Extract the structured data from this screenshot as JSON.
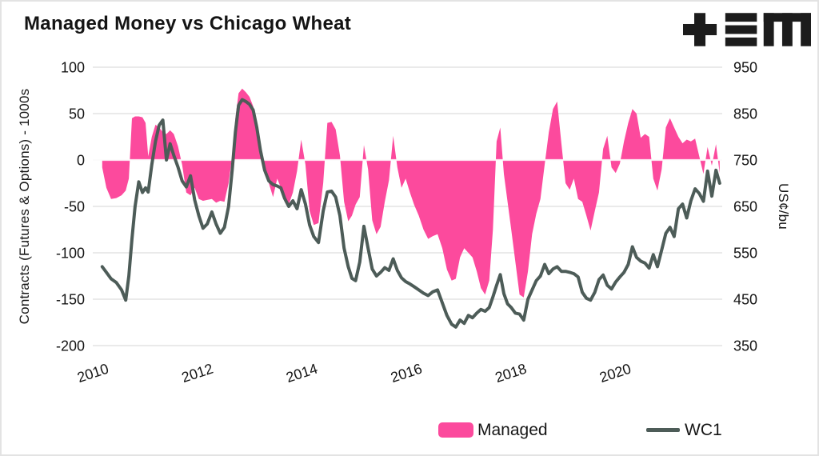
{
  "header": {
    "title": "Managed Money vs Chicago Wheat"
  },
  "logo": {
    "name": "tem-logo",
    "color": "#1c1c1c"
  },
  "colors": {
    "managed": "#fc4a9d",
    "wc1": "#4d5c58",
    "grid": "#e4e4e4",
    "zero_line": "#ffffff",
    "text": "#141414",
    "background": "#ffffff"
  },
  "legend": {
    "items": [
      {
        "label": "Managed",
        "swatch": "area",
        "color": "#fc4a9d"
      },
      {
        "label": "WC1",
        "swatch": "line",
        "color": "#4d5c58"
      }
    ]
  },
  "chart_data": {
    "type": "area+line",
    "title": "Managed Money vs Chicago Wheat",
    "grid": true,
    "legend_position": "bottom",
    "axes": {
      "x": {
        "ticks": [
          2010,
          2012,
          2014,
          2016,
          2018,
          2020
        ],
        "range": [
          2010.1,
          2022.0
        ],
        "tick_angle": -18
      },
      "left": {
        "title": "Contracts (Futures & Options) - 1000s",
        "ticks": [
          100,
          50,
          0,
          -50,
          -100,
          -150,
          -200
        ],
        "range": [
          -200,
          100
        ]
      },
      "right": {
        "title": "US¢/bu",
        "ticks": [
          950,
          850,
          750,
          650,
          550,
          450,
          350
        ],
        "range": [
          350,
          950
        ]
      }
    },
    "x": [
      2010.15,
      2010.23,
      2010.32,
      2010.42,
      2010.52,
      2010.6,
      2010.66,
      2010.72,
      2010.78,
      2010.85,
      2010.92,
      2010.98,
      2011.03,
      2011.1,
      2011.17,
      2011.24,
      2011.31,
      2011.38,
      2011.45,
      2011.52,
      2011.6,
      2011.68,
      2011.76,
      2011.84,
      2011.92,
      2012.0,
      2012.08,
      2012.16,
      2012.25,
      2012.33,
      2012.41,
      2012.49,
      2012.57,
      2012.64,
      2012.7,
      2012.76,
      2012.83,
      2012.9,
      2012.97,
      2013.04,
      2013.11,
      2013.18,
      2013.26,
      2013.34,
      2013.42,
      2013.5,
      2013.57,
      2013.64,
      2013.72,
      2013.8,
      2013.88,
      2013.96,
      2014.04,
      2014.12,
      2014.2,
      2014.29,
      2014.38,
      2014.46,
      2014.54,
      2014.62,
      2014.7,
      2014.78,
      2014.86,
      2014.93,
      2015.0,
      2015.08,
      2015.16,
      2015.24,
      2015.32,
      2015.4,
      2015.48,
      2015.56,
      2015.64,
      2015.72,
      2015.8,
      2015.88,
      2015.96,
      2016.04,
      2016.12,
      2016.21,
      2016.3,
      2016.39,
      2016.48,
      2016.57,
      2016.66,
      2016.75,
      2016.84,
      2016.92,
      2017.0,
      2017.08,
      2017.16,
      2017.24,
      2017.32,
      2017.4,
      2017.48,
      2017.56,
      2017.63,
      2017.7,
      2017.77,
      2017.84,
      2017.91,
      2017.98,
      2018.06,
      2018.14,
      2018.22,
      2018.3,
      2018.38,
      2018.46,
      2018.54,
      2018.62,
      2018.7,
      2018.78,
      2018.86,
      2018.94,
      2019.02,
      2019.1,
      2019.18,
      2019.26,
      2019.34,
      2019.42,
      2019.5,
      2019.58,
      2019.66,
      2019.74,
      2019.82,
      2019.9,
      2019.98,
      2020.06,
      2020.14,
      2020.22,
      2020.3,
      2020.38,
      2020.46,
      2020.54,
      2020.62,
      2020.7,
      2020.78,
      2020.86,
      2020.94,
      2021.02,
      2021.1,
      2021.18,
      2021.26,
      2021.34,
      2021.42,
      2021.5,
      2021.58,
      2021.66,
      2021.74,
      2021.82,
      2021.9,
      2021.97
    ],
    "series": [
      {
        "name": "Managed",
        "type": "area",
        "axis": "left",
        "color": "#fc4a9d",
        "values": [
          -8,
          -30,
          -42,
          -41,
          -38,
          -33,
          -20,
          45,
          47,
          47,
          46,
          40,
          4,
          25,
          38,
          35,
          30,
          28,
          32,
          28,
          15,
          -5,
          -35,
          -38,
          -30,
          -42,
          -44,
          -43,
          -42,
          -46,
          -44,
          -45,
          -25,
          5,
          45,
          72,
          77,
          73,
          68,
          58,
          40,
          18,
          -5,
          -25,
          -40,
          -20,
          -30,
          -40,
          -48,
          -35,
          -12,
          22,
          -5,
          -55,
          -70,
          -68,
          -25,
          40,
          41,
          33,
          5,
          -45,
          -66,
          -60,
          -48,
          -40,
          16,
          -10,
          -65,
          -80,
          -72,
          -45,
          -22,
          26,
          -8,
          -30,
          -20,
          -35,
          -48,
          -60,
          -75,
          -85,
          -82,
          -80,
          -95,
          -118,
          -130,
          -128,
          -105,
          -95,
          -100,
          -105,
          -120,
          -138,
          -145,
          -130,
          -75,
          20,
          35,
          -15,
          -45,
          -75,
          -110,
          -145,
          -148,
          -120,
          -80,
          -58,
          -42,
          -5,
          30,
          55,
          63,
          18,
          -25,
          -32,
          -20,
          -42,
          -45,
          -60,
          -76,
          -55,
          -35,
          12,
          26,
          -8,
          -14,
          -4,
          20,
          40,
          55,
          50,
          24,
          28,
          25,
          -20,
          -33,
          -10,
          35,
          45,
          35,
          25,
          18,
          22,
          20,
          23,
          4,
          -15,
          14,
          -6,
          17,
          -14
        ]
      },
      {
        "name": "WC1",
        "type": "line",
        "axis": "right",
        "color": "#4d5c58",
        "values": [
          520,
          508,
          494,
          486,
          470,
          448,
          500,
          580,
          650,
          703,
          680,
          690,
          681,
          740,
          790,
          825,
          836,
          750,
          785,
          760,
          735,
          705,
          692,
          716,
          664,
          630,
          603,
          612,
          638,
          612,
          592,
          605,
          650,
          730,
          810,
          868,
          880,
          876,
          870,
          858,
          820,
          770,
          728,
          705,
          697,
          694,
          690,
          668,
          650,
          662,
          645,
          686,
          655,
          610,
          585,
          572,
          640,
          681,
          683,
          670,
          630,
          560,
          520,
          495,
          490,
          530,
          607,
          560,
          515,
          500,
          508,
          518,
          512,
          537,
          512,
          496,
          488,
          483,
          477,
          470,
          463,
          458,
          466,
          470,
          442,
          415,
          396,
          390,
          405,
          398,
          415,
          410,
          420,
          428,
          424,
          432,
          455,
          480,
          503,
          462,
          440,
          432,
          420,
          418,
          405,
          450,
          470,
          490,
          500,
          525,
          505,
          515,
          520,
          510,
          510,
          508,
          505,
          498,
          465,
          452,
          448,
          465,
          492,
          502,
          480,
          472,
          487,
          498,
          508,
          525,
          563,
          540,
          532,
          528,
          517,
          546,
          520,
          556,
          592,
          605,
          585,
          645,
          655,
          625,
          662,
          688,
          678,
          661,
          726,
          672,
          728,
          700
        ]
      }
    ]
  }
}
